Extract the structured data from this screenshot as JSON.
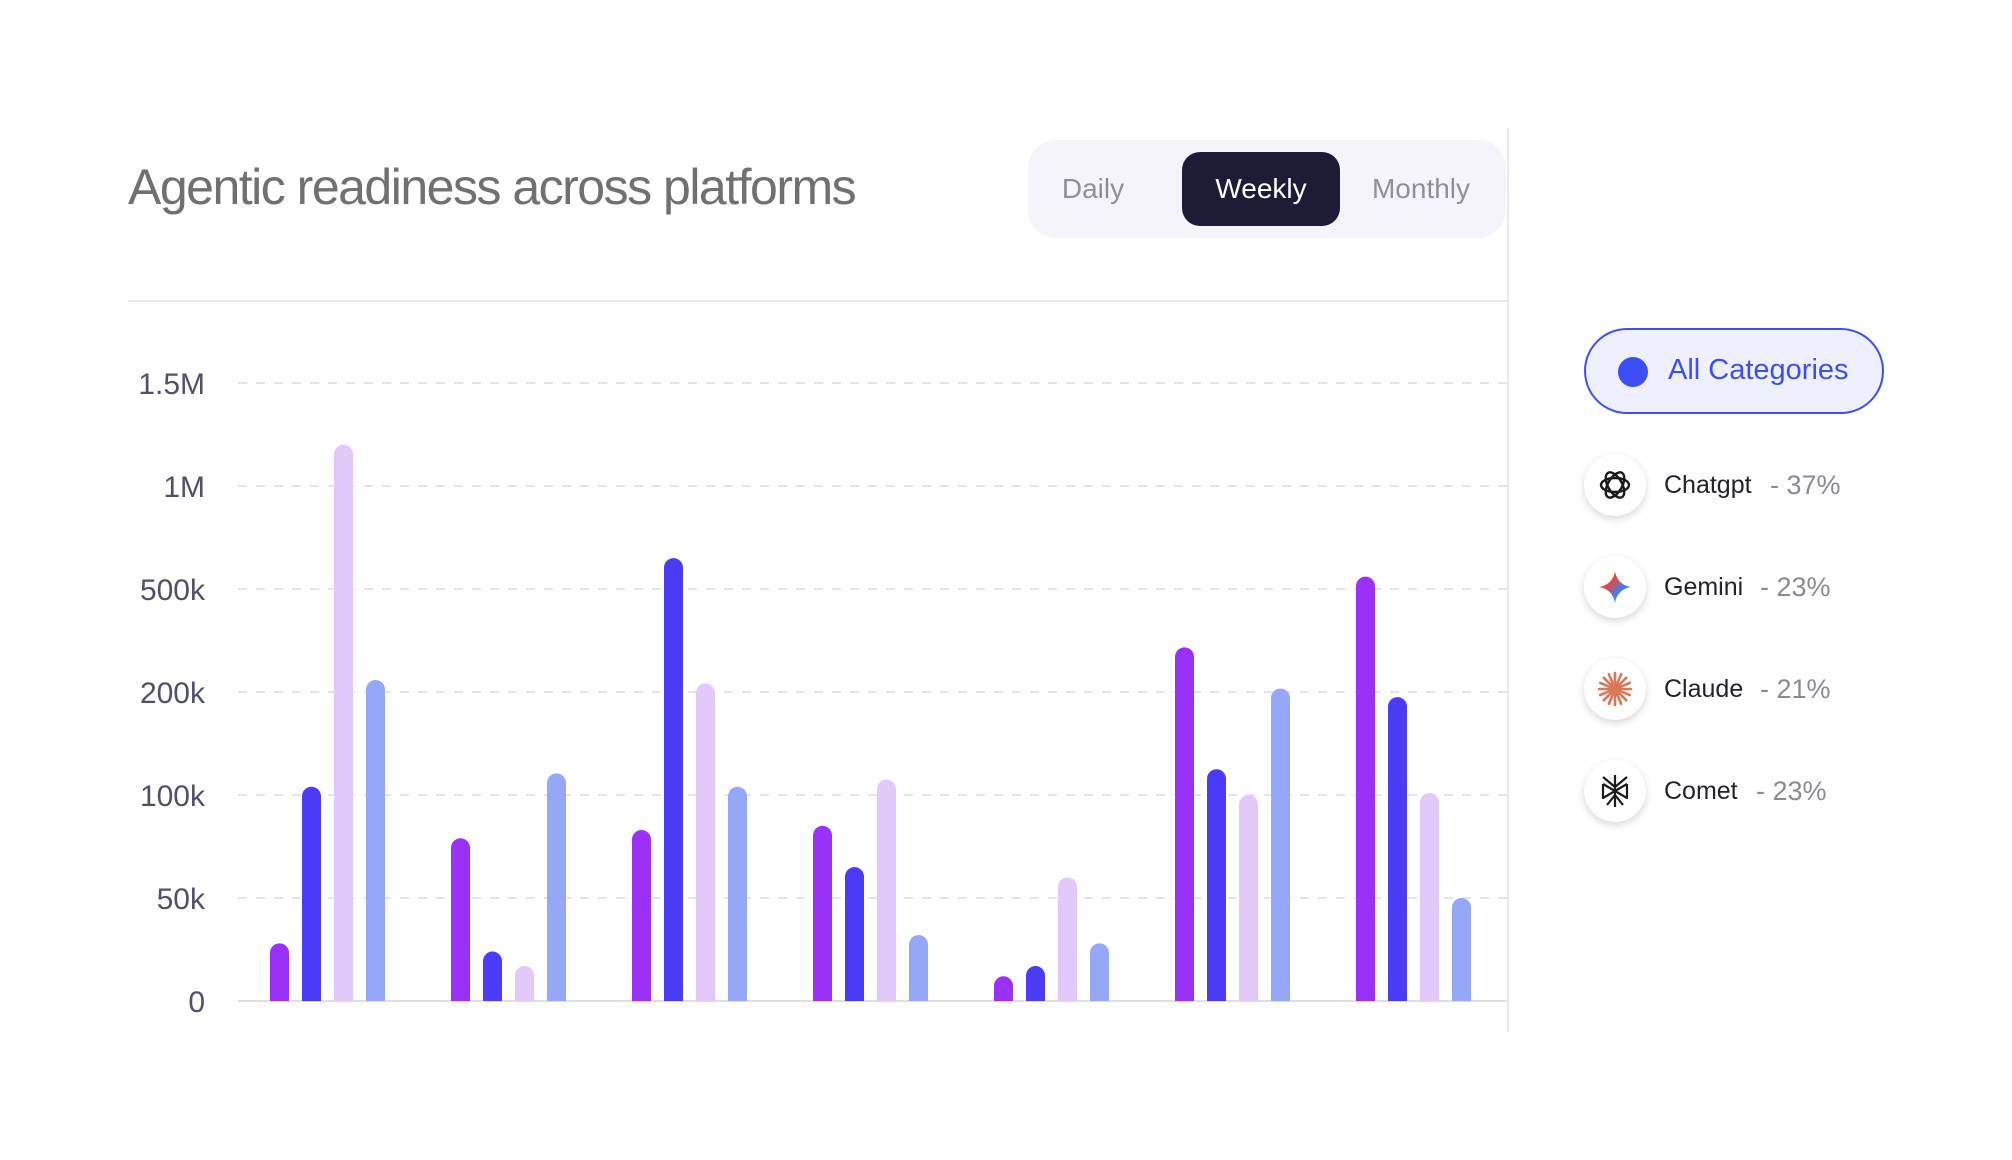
{
  "title": "Agentic readiness across platforms",
  "toggle": {
    "options": [
      "Daily",
      "Weekly",
      "Monthly"
    ],
    "selected": "Weekly"
  },
  "legend": {
    "all_label": "All Categories",
    "accent": "#3d4ef5",
    "items": [
      {
        "name": "Chatgpt",
        "share": "- 37%",
        "icon": "chatgpt-logo-icon"
      },
      {
        "name": "Gemini",
        "share": "- 23%",
        "icon": "gemini-logo-icon"
      },
      {
        "name": "Claude",
        "share": "- 21%",
        "icon": "claude-logo-icon"
      },
      {
        "name": "Comet",
        "share": "- 23%",
        "icon": "comet-logo-icon"
      }
    ]
  },
  "chart_data": {
    "type": "bar",
    "title": "Agentic readiness across platforms",
    "xlabel": "",
    "ylabel": "",
    "y_ticks": [
      "0",
      "50k",
      "100k",
      "200k",
      "500k",
      "1M",
      "1.5M"
    ],
    "y_tick_values": [
      0,
      50000,
      100000,
      200000,
      500000,
      1000000,
      1500000
    ],
    "scale": "piecewise",
    "grid": true,
    "categories": [
      "",
      "",
      "",
      "",
      "",
      "",
      ""
    ],
    "series": [
      {
        "color": "#9b30f6",
        "values": [
          28000,
          79000,
          83000,
          85000,
          12000,
          330000,
          560000
        ]
      },
      {
        "color": "#4a3cf6",
        "values": [
          108000,
          24000,
          650000,
          65000,
          17000,
          125000,
          195000
        ]
      },
      {
        "color": "#e1c9f9",
        "values": [
          1200000,
          17000,
          225000,
          115000,
          60000,
          100000,
          102000
        ]
      },
      {
        "color": "#94a8f7",
        "values": [
          235000,
          121000,
          108000,
          32000,
          28000,
          210000,
          50000
        ]
      }
    ]
  }
}
